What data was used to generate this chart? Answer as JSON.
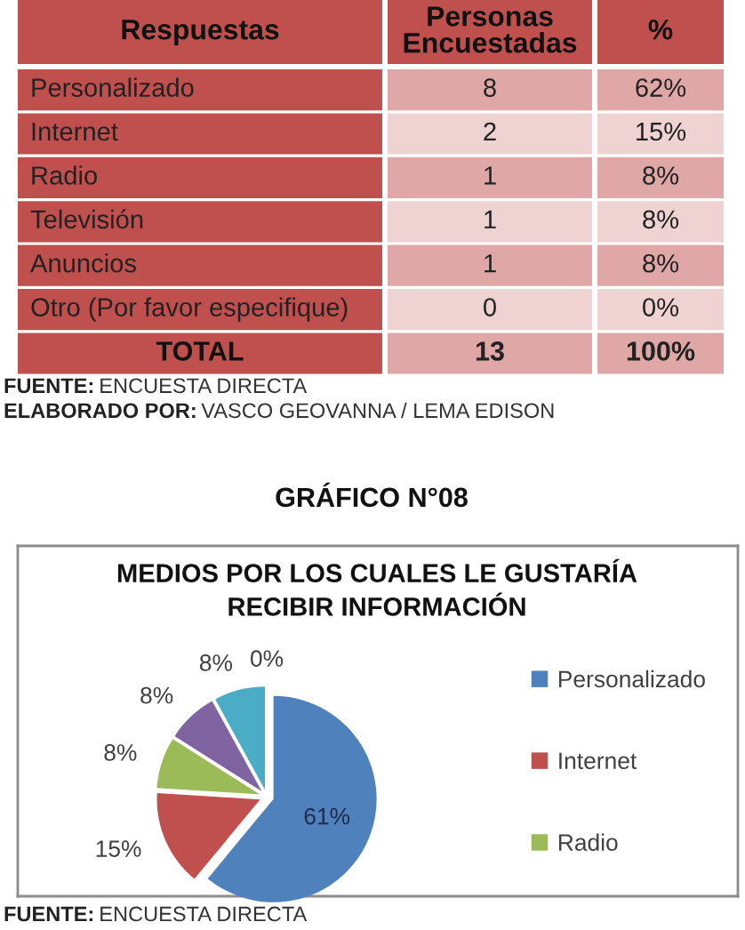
{
  "chart_data": [
    {
      "type": "other",
      "ylabel": "Respuestas",
      "data_labels": true,
      "categories": [
        "Personalizado",
        "Internet",
        "Radio",
        "Televisión",
        "Anuncios",
        "Otro (Por favor especifique)",
        "TOTAL"
      ],
      "series": [
        {
          "name": "Personas Encuestadas",
          "values": [
            8,
            2,
            1,
            1,
            1,
            0,
            13
          ],
          "colors": [
            "#dfa7a6",
            "#efd3d2",
            "#dfa7a6",
            "#efd3d2",
            "#dfa7a6",
            "#efd3d2",
            "#dfa7a6"
          ]
        },
        {
          "name": "%",
          "values": [
            62,
            15,
            8,
            8,
            8,
            0,
            100
          ],
          "value_labels": [
            "62%",
            "15%",
            "8%",
            "8%",
            "8%",
            "0%",
            "100%"
          ],
          "colors": [
            "#dfa7a6",
            "#efd3d2",
            "#dfa7a6",
            "#efd3d2",
            "#dfa7a6",
            "#efd3d2",
            "#dfa7a6"
          ]
        }
      ],
      "annotations": [
        "FUENTE: ENCUESTA DIRECTA",
        "ELABORADO POR: VASCO GEOVANNA / LEMA EDISON"
      ]
    },
    {
      "type": "pie",
      "title": "GRÁFICO N°08",
      "subtitle": "MEDIOS POR LOS CUALES LE GUSTARÍA RECIBIR INFORMACIÓN",
      "categories": [
        "Personalizado",
        "Internet",
        "Radio",
        null,
        null,
        null
      ],
      "values": [
        61,
        15,
        8,
        8,
        8,
        0
      ],
      "value_labels": [
        "61%",
        "15%",
        "8%",
        "8%",
        "8%",
        "0%"
      ],
      "colors": [
        "#4f81bd",
        "#c0504d",
        "#9bbb59",
        "#8064a2",
        "#4bacc6",
        "#f79646"
      ],
      "legend": "right",
      "annotations": [
        "FUENTE: ENCUESTA DIRECTA"
      ]
    }
  ]
}
